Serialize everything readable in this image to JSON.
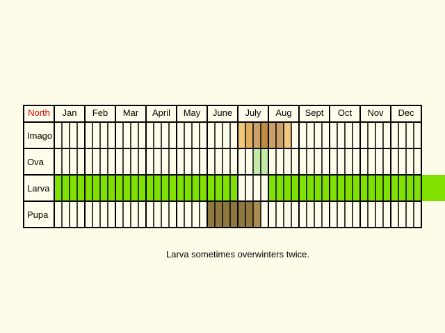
{
  "chart_data": {
    "type": "table",
    "region_label": "North",
    "months": [
      "Jan",
      "Feb",
      "Mar",
      "April",
      "May",
      "June",
      "July",
      "Aug",
      "Sept",
      "Oct",
      "Nov",
      "Dec"
    ],
    "stages": [
      {
        "name": "Imago",
        "periods": [
          {
            "start_week": 24,
            "end_week": 25,
            "color": "#f0c77e"
          },
          {
            "start_week": 25,
            "end_week": 26,
            "color": "#e0ac60"
          },
          {
            "start_week": 26,
            "end_week": 27,
            "color": "#caa06a"
          },
          {
            "start_week": 27,
            "end_week": 28,
            "color": "#c08c3e"
          },
          {
            "start_week": 28,
            "end_week": 30,
            "color": "#caa06a"
          },
          {
            "start_week": 30,
            "end_week": 31,
            "color": "#f0c77e"
          }
        ]
      },
      {
        "name": "Ova",
        "periods": [
          {
            "start_week": 26,
            "end_week": 28,
            "color": "#c3eaa9"
          }
        ]
      },
      {
        "name": "Larva",
        "periods": [
          {
            "start_week": 0,
            "end_week": 24,
            "color": "#80e000"
          },
          {
            "start_week": 28,
            "end_week": 52,
            "color": "#80e000"
          }
        ]
      },
      {
        "name": "Pupa",
        "periods": [
          {
            "start_week": 20,
            "end_week": 26,
            "color": "#8f7740"
          },
          {
            "start_week": 26,
            "end_week": 27,
            "color": "#a88c52"
          }
        ]
      }
    ],
    "note": "Larva sometimes overwinters twice."
  },
  "colors": {
    "background": "#fdfce9",
    "grid_line": "#000000",
    "region_label": "#e00000",
    "empty_cell": "#fefcea"
  }
}
